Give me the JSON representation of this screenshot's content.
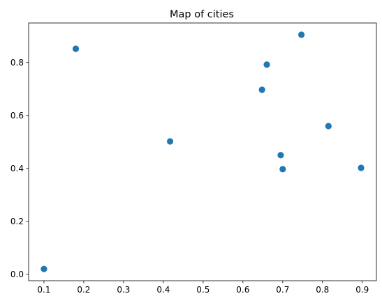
{
  "chart_data": {
    "type": "scatter",
    "title": "Map of cities",
    "xlabel": "",
    "ylabel": "",
    "x": [
      0.1,
      0.18,
      0.417,
      0.648,
      0.66,
      0.695,
      0.7,
      0.747,
      0.815,
      0.897
    ],
    "y": [
      0.02,
      0.852,
      0.502,
      0.697,
      0.792,
      0.45,
      0.397,
      0.905,
      0.56,
      0.402
    ],
    "xlim": [
      0.0615,
      0.9355
    ],
    "ylim": [
      -0.0243,
      0.9493
    ],
    "xticks": [
      "0.1",
      "0.2",
      "0.3",
      "0.4",
      "0.5",
      "0.6",
      "0.7",
      "0.8",
      "0.9"
    ],
    "yticks": [
      "0.0",
      "0.2",
      "0.4",
      "0.6",
      "0.8"
    ],
    "marker_color": "#1f77b4",
    "grid": false,
    "legend": false
  }
}
